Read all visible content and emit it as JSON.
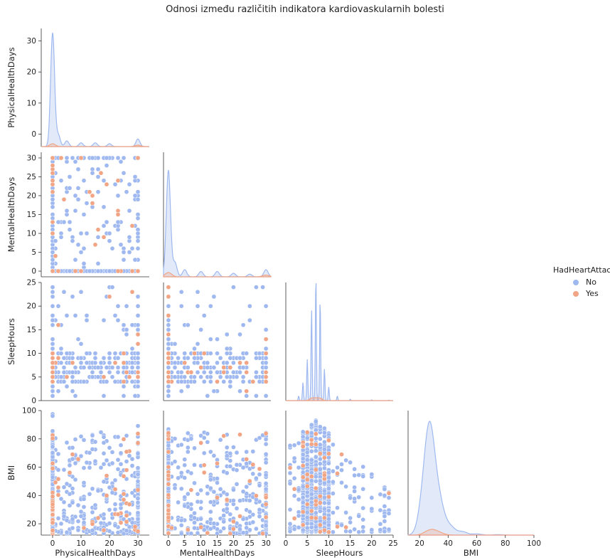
{
  "title": "Odnosi između različitih indikatora kardiovaskularnih bolesti",
  "legend": {
    "title": "HadHeartAttack",
    "items": [
      {
        "label": "No",
        "color": "#9FB9F0"
      },
      {
        "label": "Yes",
        "color": "#F1A585"
      }
    ]
  },
  "chart_data": {
    "type": "scatter",
    "subtype": "pairplot",
    "variables": [
      "PhysicalHealthDays",
      "MentalHealthDays",
      "SleepHours",
      "BMI"
    ],
    "hue": "HadHeartAttack",
    "hue_levels": [
      "No",
      "Yes"
    ],
    "corner": true,
    "axes": {
      "PhysicalHealthDays": {
        "ticks": [
          0,
          10,
          20,
          30
        ],
        "range": [
          -4,
          34
        ]
      },
      "MentalHealthDays": {
        "ticks": [
          0,
          5,
          10,
          15,
          20,
          25,
          30
        ],
        "range": [
          -1.5,
          31.5
        ]
      },
      "SleepHours": {
        "ticks": [
          0,
          5,
          10,
          15,
          20,
          25
        ],
        "range": [
          0,
          25
        ]
      },
      "BMI": {
        "ticks": [
          20,
          40,
          60,
          80,
          100
        ],
        "range": [
          12,
          100
        ]
      }
    },
    "diagonal": "kde",
    "grid": false,
    "legend_position": "right"
  }
}
